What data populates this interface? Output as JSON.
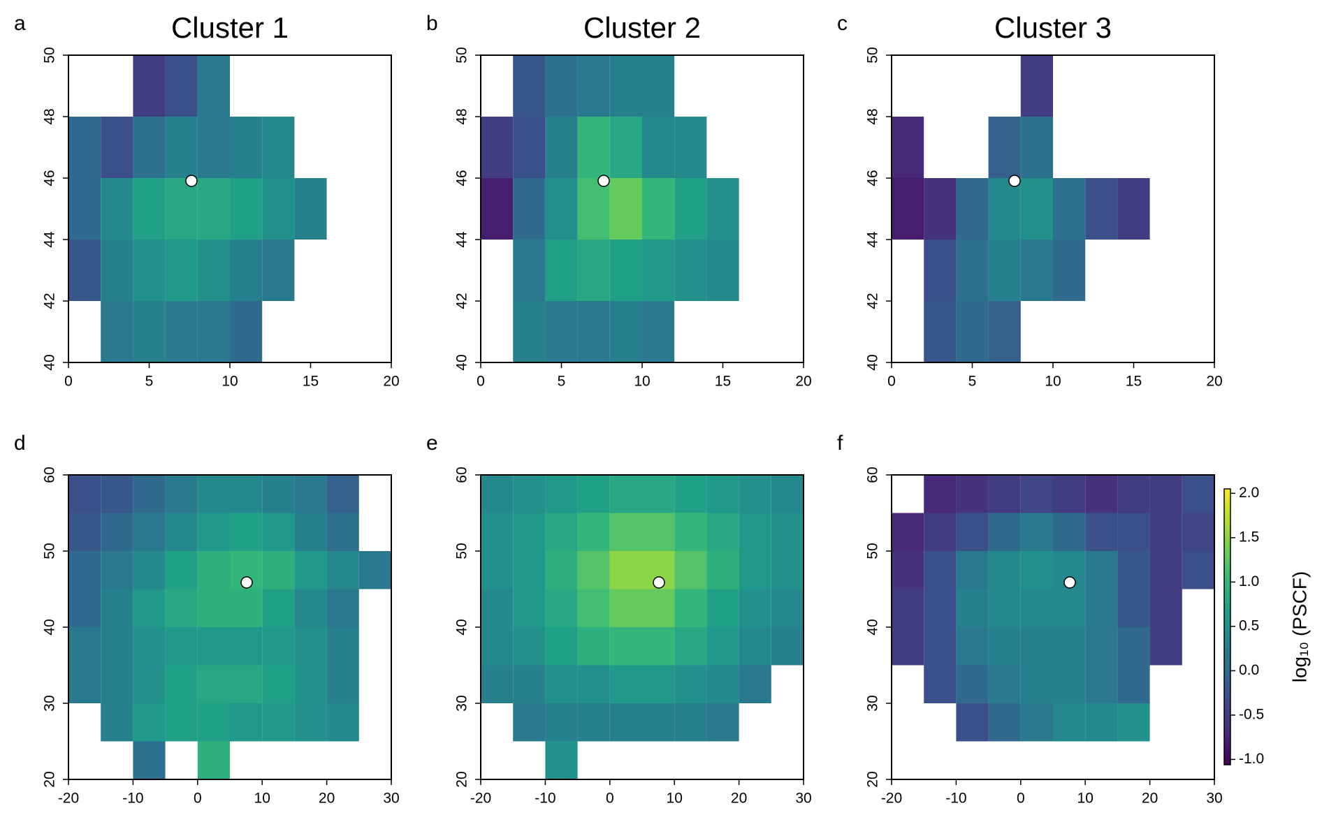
{
  "chart_data": [
    {
      "type": "heatmap",
      "panel": "a",
      "title": "Cluster 1",
      "xbins": [
        0,
        2,
        4,
        6,
        8,
        10,
        12,
        14,
        16,
        18,
        20
      ],
      "ybins": [
        40,
        42,
        44,
        46,
        48,
        50
      ],
      "z": [
        [
          null,
          0.2,
          0.3,
          0.2,
          0.2,
          0.0,
          null,
          null,
          null,
          null
        ],
        [
          -0.2,
          0.3,
          0.5,
          0.6,
          0.5,
          0.3,
          0.2,
          null,
          null,
          null
        ],
        [
          0.0,
          0.4,
          0.7,
          0.8,
          0.8,
          0.7,
          0.5,
          0.3,
          null,
          null
        ],
        [
          0.0,
          -0.3,
          0.1,
          0.3,
          0.2,
          0.3,
          0.4,
          null,
          null,
          null
        ],
        [
          null,
          null,
          -0.5,
          -0.3,
          0.2,
          null,
          null,
          null,
          null,
          null
        ]
      ],
      "xlim": [
        0,
        20
      ],
      "ylim": [
        40,
        50
      ],
      "xticks": [
        0,
        5,
        10,
        15,
        20
      ],
      "yticks": [
        40,
        42,
        44,
        46,
        48,
        50
      ]
    },
    {
      "type": "heatmap",
      "panel": "b",
      "title": "Cluster 2",
      "xbins": [
        0,
        2,
        4,
        6,
        8,
        10,
        12,
        14,
        16,
        18,
        20
      ],
      "ybins": [
        40,
        42,
        44,
        46,
        48,
        50
      ],
      "z": [
        [
          null,
          0.3,
          0.2,
          0.2,
          0.3,
          0.2,
          null,
          null,
          null,
          null
        ],
        [
          null,
          0.2,
          0.7,
          0.8,
          0.7,
          0.6,
          0.5,
          0.4,
          null,
          null
        ],
        [
          -0.8,
          0.0,
          0.5,
          1.1,
          1.3,
          1.0,
          0.7,
          0.5,
          null,
          null
        ],
        [
          -0.5,
          -0.3,
          0.3,
          1.0,
          0.8,
          0.4,
          0.4,
          null,
          null,
          null
        ],
        [
          null,
          -0.2,
          0.1,
          0.2,
          0.3,
          0.3,
          null,
          null,
          null,
          null
        ]
      ],
      "xlim": [
        0,
        20
      ],
      "ylim": [
        40,
        50
      ],
      "xticks": [
        0,
        5,
        10,
        15,
        20
      ],
      "yticks": [
        40,
        42,
        44,
        46,
        48,
        50
      ]
    },
    {
      "type": "heatmap",
      "panel": "c",
      "title": "Cluster 3",
      "xbins": [
        0,
        2,
        4,
        6,
        8,
        10,
        12,
        14,
        16,
        18,
        20
      ],
      "ybins": [
        40,
        42,
        44,
        46,
        48,
        50
      ],
      "z": [
        [
          null,
          -0.2,
          0.0,
          -0.1,
          null,
          null,
          null,
          null,
          null,
          null
        ],
        [
          null,
          -0.3,
          0.1,
          0.3,
          0.2,
          0.0,
          null,
          null,
          null,
          null
        ],
        [
          -0.8,
          -0.6,
          0.0,
          0.4,
          0.5,
          0.1,
          -0.3,
          -0.5,
          null,
          null
        ],
        [
          -0.7,
          null,
          null,
          -0.1,
          0.1,
          null,
          null,
          null,
          null,
          null
        ],
        [
          null,
          null,
          null,
          null,
          -0.5,
          null,
          null,
          null,
          null,
          null
        ]
      ],
      "xlim": [
        0,
        20
      ],
      "ylim": [
        40,
        50
      ],
      "xticks": [
        0,
        5,
        10,
        15,
        20
      ],
      "yticks": [
        40,
        42,
        44,
        46,
        48,
        50
      ]
    },
    {
      "type": "heatmap",
      "panel": "d",
      "xbins": [
        -20,
        -15,
        -10,
        -5,
        0,
        5,
        10,
        15,
        20,
        25,
        30
      ],
      "ybins": [
        20,
        25,
        30,
        35,
        40,
        45,
        50,
        55,
        60
      ],
      "z": [
        [
          null,
          null,
          0.1,
          null,
          0.9,
          null,
          null,
          null,
          null,
          null
        ],
        [
          null,
          0.3,
          0.6,
          0.7,
          0.7,
          0.6,
          0.6,
          0.5,
          0.4,
          null
        ],
        [
          0.2,
          0.3,
          0.5,
          0.7,
          0.8,
          0.8,
          0.7,
          0.5,
          0.3,
          null
        ],
        [
          0.2,
          0.3,
          0.5,
          0.6,
          0.6,
          0.6,
          0.6,
          0.5,
          0.3,
          null
        ],
        [
          0.0,
          0.3,
          0.6,
          0.8,
          0.9,
          0.9,
          0.7,
          0.4,
          0.2,
          null
        ],
        [
          0.0,
          0.2,
          0.4,
          0.7,
          0.9,
          1.0,
          0.9,
          0.6,
          0.4,
          0.2
        ],
        [
          -0.2,
          0.0,
          0.2,
          0.4,
          0.6,
          0.7,
          0.6,
          0.3,
          0.1,
          null
        ],
        [
          -0.3,
          -0.2,
          0.0,
          0.2,
          0.4,
          0.4,
          0.3,
          0.2,
          -0.1,
          null
        ]
      ],
      "xlim": [
        -20,
        30
      ],
      "ylim": [
        20,
        60
      ],
      "xticks": [
        -20,
        -10,
        0,
        10,
        20,
        30
      ],
      "yticks": [
        20,
        30,
        40,
        50,
        60
      ]
    },
    {
      "type": "heatmap",
      "panel": "e",
      "xbins": [
        -20,
        -15,
        -10,
        -5,
        0,
        5,
        10,
        15,
        20,
        25,
        30
      ],
      "ybins": [
        20,
        25,
        30,
        35,
        40,
        45,
        50,
        55,
        60
      ],
      "z": [
        [
          null,
          null,
          0.5,
          null,
          null,
          null,
          null,
          null,
          null,
          null
        ],
        [
          null,
          0.2,
          0.3,
          0.3,
          0.3,
          0.3,
          0.3,
          0.2,
          null,
          null
        ],
        [
          0.3,
          0.3,
          0.5,
          0.5,
          0.6,
          0.6,
          0.5,
          0.4,
          0.2,
          null
        ],
        [
          0.4,
          0.5,
          0.7,
          0.9,
          1.0,
          1.0,
          0.8,
          0.6,
          0.4,
          0.3
        ],
        [
          0.4,
          0.6,
          0.8,
          1.1,
          1.3,
          1.3,
          1.0,
          0.7,
          0.5,
          0.4
        ],
        [
          0.5,
          0.6,
          0.9,
          1.2,
          1.5,
          1.5,
          1.2,
          0.9,
          0.6,
          0.5
        ],
        [
          0.5,
          0.6,
          0.8,
          1.0,
          1.2,
          1.2,
          1.0,
          0.8,
          0.6,
          0.5
        ],
        [
          0.4,
          0.5,
          0.6,
          0.7,
          0.8,
          0.8,
          0.7,
          0.6,
          0.5,
          0.4
        ]
      ],
      "xlim": [
        -20,
        30
      ],
      "ylim": [
        20,
        60
      ],
      "xticks": [
        -20,
        -10,
        0,
        10,
        20,
        30
      ],
      "yticks": [
        20,
        30,
        40,
        50,
        60
      ]
    },
    {
      "type": "heatmap",
      "panel": "f",
      "xbins": [
        -20,
        -15,
        -10,
        -5,
        0,
        5,
        10,
        15,
        20,
        25,
        30
      ],
      "ybins": [
        20,
        25,
        30,
        35,
        40,
        45,
        50,
        55,
        60
      ],
      "z": [
        [
          null,
          null,
          null,
          null,
          null,
          null,
          null,
          null,
          null,
          null
        ],
        [
          null,
          null,
          -0.3,
          0.0,
          0.2,
          0.4,
          0.4,
          0.5,
          null,
          null
        ],
        [
          null,
          -0.3,
          0.0,
          0.2,
          0.3,
          0.3,
          0.2,
          0.0,
          null,
          null
        ],
        [
          -0.5,
          -0.3,
          0.2,
          0.3,
          0.3,
          0.3,
          0.2,
          0.0,
          -0.5,
          null
        ],
        [
          -0.5,
          -0.3,
          0.3,
          0.4,
          0.4,
          0.4,
          0.2,
          -0.2,
          -0.5,
          null
        ],
        [
          -0.6,
          -0.3,
          0.2,
          0.4,
          0.5,
          0.4,
          0.2,
          -0.2,
          -0.5,
          -0.3
        ],
        [
          -0.7,
          -0.5,
          -0.3,
          0.0,
          0.2,
          0.0,
          -0.3,
          -0.3,
          -0.5,
          -0.4
        ],
        [
          null,
          -0.7,
          -0.6,
          -0.5,
          -0.4,
          -0.5,
          -0.6,
          -0.5,
          -0.5,
          -0.3
        ]
      ],
      "xlim": [
        -20,
        30
      ],
      "ylim": [
        20,
        60
      ],
      "xticks": [
        -20,
        -10,
        0,
        10,
        20,
        30
      ],
      "yticks": [
        20,
        30,
        40,
        50,
        60
      ],
      "colorbar": {
        "label": "log₁₀ (PSCF)",
        "lim": [
          -1.06,
          2.05
        ],
        "colormap": [
          "#440154",
          "#482878",
          "#3e4989",
          "#31688e",
          "#26828e",
          "#1f9e89",
          "#35b779",
          "#6ece58",
          "#b5de2b",
          "#fde725"
        ],
        "ticks": [
          {
            "value": -1.0,
            "label": "-1.0"
          },
          {
            "value": -0.5,
            "label": "-0.5"
          },
          {
            "value": 0.0,
            "label": "0.0"
          },
          {
            "value": 0.5,
            "label": "0.5"
          },
          {
            "value": 1.0,
            "label": "1.0"
          },
          {
            "value": 1.5,
            "label": "1.5"
          },
          {
            "value": 2.0,
            "label": "2.0"
          }
        ]
      }
    }
  ]
}
